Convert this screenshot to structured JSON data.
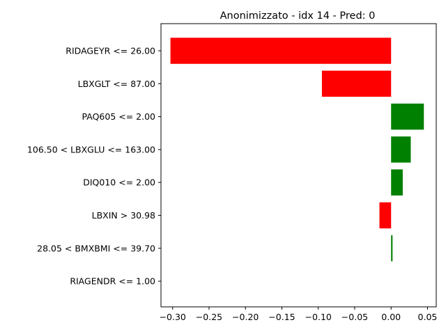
{
  "chart_data": {
    "type": "bar",
    "orientation": "horizontal",
    "title": "Anonimizzato - idx 14 - Pred: 0",
    "xlabel": "",
    "ylabel": "",
    "xlim": [
      -0.316,
      0.062
    ],
    "xticks": [
      -0.3,
      -0.25,
      -0.2,
      -0.15,
      -0.1,
      -0.05,
      0.0,
      0.05
    ],
    "xtick_labels": [
      "−0.30",
      "−0.25",
      "−0.20",
      "−0.15",
      "−0.10",
      "−0.05",
      "0.00",
      "0.05"
    ],
    "categories": [
      "RIDAGEYR <= 26.00",
      "LBXGLT <= 87.00",
      "PAQ605 <= 2.00",
      "106.50 < LBXGLU <= 163.00",
      "DIQ010 <= 2.00",
      "LBXIN > 30.98",
      "28.05 < BMXBMI <= 39.70",
      "RIAGENDR <= 1.00"
    ],
    "values": [
      -0.303,
      -0.095,
      0.045,
      0.027,
      0.016,
      -0.016,
      0.002,
      0.0
    ],
    "colors": {
      "positive": "#008000",
      "negative": "#ff0000"
    },
    "grid": false,
    "legend": "none"
  }
}
